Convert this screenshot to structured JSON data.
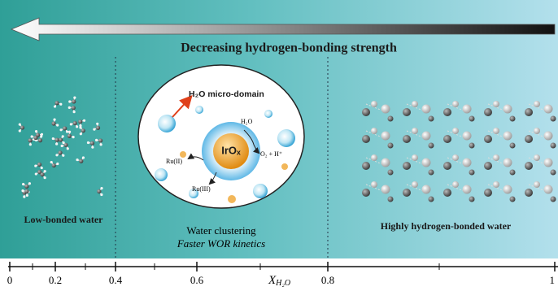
{
  "title": "Decreasing hydrogen-bonding strength",
  "regions": [
    {
      "label": "Low-bonded water"
    },
    {
      "label": "Water clustering",
      "sublabel": "Faster WOR kinetics"
    },
    {
      "label": "Highly hydrogen-bonded water"
    }
  ],
  "inset": {
    "domain_label": "H₂O micro-domain",
    "core": "IrOₓ",
    "reactant": "H₂O",
    "product": "O₂ + H⁺",
    "ru2": "Ru(II)",
    "ru3": "Ru(III)"
  },
  "axis": {
    "ticks": [
      "0",
      "0.2",
      "0.4",
      "0.6",
      "0.8",
      "1"
    ],
    "symbol": "X",
    "subscript": "H₂O"
  }
}
